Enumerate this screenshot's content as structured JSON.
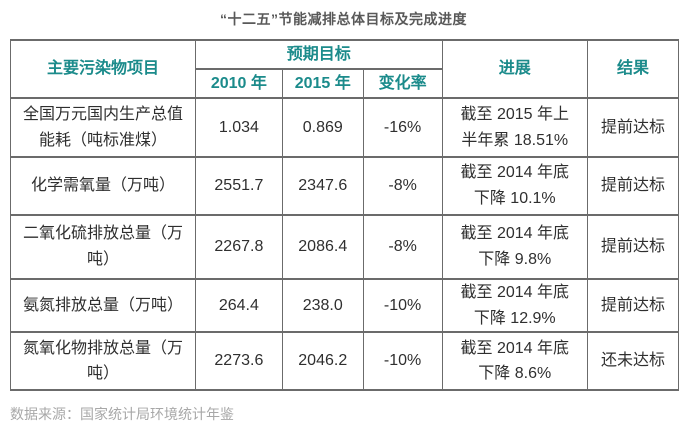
{
  "title": "“十二五”节能减排总体目标及完成进度",
  "chart_data": {
    "type": "table",
    "title": "“十二五”节能减排总体目标及完成进度",
    "header": {
      "pollutant": "主要污染物项目",
      "expected_group": "预期目标",
      "sub": [
        "2010 年",
        "2015 年",
        "变化率"
      ],
      "progress": "进展",
      "result": "结果"
    },
    "rows": [
      {
        "item": "全国万元国内生产总值\n能耗（吨标准煤）",
        "v2010": "1.034",
        "v2015": "0.869",
        "change": "-16%",
        "progress": "截至 2015 年上\n半年累 18.51%",
        "result": "提前达标"
      },
      {
        "item": "化学需氧量（万吨）",
        "v2010": "2551.7",
        "v2015": "2347.6",
        "change": "-8%",
        "progress": "截至 2014 年底\n下降 10.1%",
        "result": "提前达标"
      },
      {
        "item": "二氧化硫排放总量（万\n吨）",
        "v2010": "2267.8",
        "v2015": "2086.4",
        "change": "-8%",
        "progress": "截至 2014 年底\n下降 9.8%",
        "result": "提前达标"
      },
      {
        "item": "氨氮排放总量（万吨）",
        "v2010": "264.4",
        "v2015": "238.0",
        "change": "-10%",
        "progress": "截至 2014 年底\n下降 12.9%",
        "result": "提前达标"
      },
      {
        "item": "氮氧化物排放总量（万\n吨）",
        "v2010": "2273.6",
        "v2015": "2046.2",
        "change": "-10%",
        "progress": "截至 2014 年底\n下降 8.6%",
        "result": "还未达标"
      }
    ],
    "source": "数据来源：国家统计局环境统计年鉴",
    "layout": {
      "grid": true,
      "header_rows": 2,
      "column_count": 6
    }
  },
  "colors": {
    "header_text": "#1b8b8b",
    "body_text": "#2f2f2f",
    "border": "#6b6b6b",
    "title_text": "#595959",
    "source_text": "#a8a8a8",
    "background": "#ffffff"
  }
}
